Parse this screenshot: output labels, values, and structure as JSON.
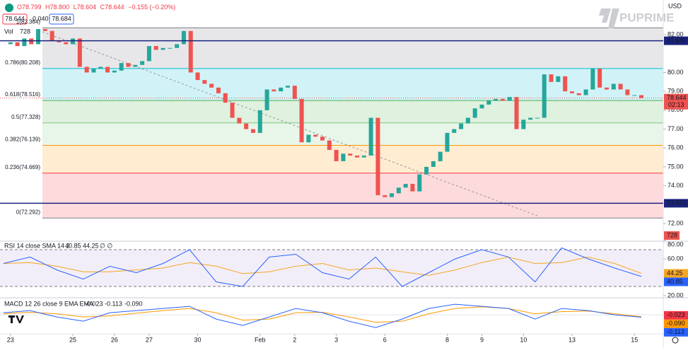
{
  "header": {
    "ohlc": [
      "O78.799",
      "H78.800",
      "L78.604",
      "C78.644",
      "−0.155 (−0.20%)"
    ],
    "spread": "0.040",
    "ask": "78.684",
    "vol_label": "Vol",
    "vol": "728",
    "currency": "USD",
    "timer": "02:13",
    "brand": "PUPRIME"
  },
  "chart_data": {
    "type": "candlestick",
    "categories": [
      null,
      "23",
      null,
      null,
      null,
      null,
      null,
      null,
      null,
      null,
      "25",
      null,
      null,
      null,
      null,
      null,
      "26",
      null,
      null,
      null,
      null,
      "27",
      null,
      null,
      null,
      null,
      null,
      null,
      "30",
      null,
      null,
      null,
      null,
      null,
      null,
      null,
      null,
      "Feb",
      null,
      null,
      null,
      null,
      "2",
      null,
      null,
      null,
      null,
      null,
      "3",
      null,
      null,
      null,
      null,
      null,
      null,
      "6",
      null,
      null,
      null,
      null,
      null,
      null,
      null,
      null,
      "8",
      null,
      null,
      null,
      null,
      "9",
      null,
      null,
      null,
      null,
      null,
      "10",
      null,
      null,
      null,
      null,
      null,
      null,
      "13",
      null,
      null,
      null,
      null,
      null,
      null,
      null,
      null,
      "15",
      null
    ],
    "values": [
      81.5,
      81.6,
      81.4,
      81.8,
      81.5,
      82.3,
      82.2,
      81.7,
      81.6,
      81.5,
      81.8,
      80.3,
      80.0,
      80.2,
      80.3,
      80.0,
      80.1,
      80.5,
      80.3,
      80.4,
      80.6,
      81.4,
      81.2,
      81.3,
      81.3,
      81.5,
      82.2,
      80.0,
      79.6,
      79.4,
      79.2,
      78.9,
      78.4,
      77.6,
      77.3,
      77.0,
      76.8,
      78.0,
      79.1,
      79.0,
      79.2,
      79.3,
      78.6,
      76.3,
      76.7,
      76.6,
      76.4,
      75.9,
      75.3,
      75.7,
      75.6,
      75.5,
      75.6,
      77.6,
      73.5,
      73.4,
      73.6,
      73.9,
      74.1,
      73.7,
      74.6,
      75.0,
      75.3,
      75.8,
      76.8,
      77.0,
      77.3,
      77.6,
      78.1,
      78.3,
      78.5,
      78.6,
      78.5,
      78.7,
      77.0,
      77.5,
      77.6,
      77.6,
      79.9,
      79.5,
      79.8,
      79.0,
      78.9,
      78.8,
      79.1,
      80.2,
      79.2,
      79.1,
      79.4,
      79.1,
      78.8,
      78.8,
      78.644
    ],
    "up_color": "#26a69a",
    "down_color": "#ef5350",
    "ylim": [
      71.1,
      83.84
    ],
    "yticks": [
      {
        "value": 72,
        "label": "72.00"
      },
      {
        "value": 74,
        "label": "74.00"
      },
      {
        "value": 75,
        "label": "75.00"
      },
      {
        "value": 76,
        "label": "76.00"
      },
      {
        "value": 77,
        "label": "77.00"
      },
      {
        "value": 78,
        "label": "78.00"
      },
      {
        "value": 79,
        "label": "79.00"
      },
      {
        "value": 80,
        "label": "80.00"
      },
      {
        "value": 82,
        "label": "82.00"
      }
    ],
    "fib": [
      {
        "label": "1(82.364)",
        "value": 82.364,
        "color": "#787b86"
      },
      {
        "label": "0.786(80.208)",
        "value": 80.208,
        "color": "#00bcd4"
      },
      {
        "label": "0.618(78.516)",
        "value": 78.516,
        "color": "#4caf50"
      },
      {
        "label": "0.5(77.328)",
        "value": 77.328,
        "color": "#81c784"
      },
      {
        "label": "0.382(76.139)",
        "value": 76.139,
        "color": "#ff9800"
      },
      {
        "label": "0.236(74.669)",
        "value": 74.669,
        "color": "#f23645"
      },
      {
        "label": "0(72.292)",
        "value": 72.292,
        "color": "#787b86"
      }
    ],
    "hlines": [
      {
        "value": 81.68,
        "label": "81.680",
        "color": "#1a237e"
      },
      {
        "value": 73.072,
        "label": "73.072",
        "color": "#1a237e"
      }
    ],
    "rsi": {
      "title": "RSI 14 close SMA 14 2",
      "nulls": "∅ ∅",
      "ylim": [
        18.46,
        80
      ],
      "yticks": [
        {
          "value": 80,
          "label": "80.00"
        },
        {
          "value": 60,
          "label": "60.00"
        },
        {
          "value": 20,
          "label": "20.00"
        }
      ],
      "band": [
        70,
        30
      ],
      "values": [
        55,
        62,
        48,
        38,
        52,
        45,
        55,
        70,
        35,
        30,
        62,
        65,
        45,
        38,
        62,
        30,
        45,
        60,
        70,
        62,
        35,
        72,
        60,
        50,
        40.85
      ],
      "sma": [
        55,
        56,
        52,
        46,
        46,
        48,
        50,
        56,
        52,
        44,
        46,
        52,
        55,
        48,
        50,
        46,
        42,
        48,
        56,
        62,
        55,
        56,
        62,
        55,
        44.25
      ],
      "color": "#2962ff",
      "sma_color": "#f5a623"
    },
    "macd": {
      "title": "MACD 12 26 close 9 EMA EMA",
      "ylim": [
        -0.83,
        0.67
      ],
      "histogram_last": -0.023,
      "values": [
        0.1,
        0.2,
        -0.1,
        -0.3,
        0.1,
        0.2,
        0.3,
        0.4,
        -0.2,
        -0.5,
        -0.1,
        0.3,
        0.1,
        -0.3,
        -0.6,
        -0.2,
        0.3,
        0.5,
        0.4,
        0.3,
        -0.2,
        0.3,
        0.2,
        0.0,
        -0.113
      ],
      "signal": [
        0.05,
        0.12,
        0.05,
        -0.1,
        -0.05,
        0.08,
        0.2,
        0.3,
        0.1,
        -0.25,
        -0.2,
        0.1,
        0.12,
        -0.1,
        -0.35,
        -0.3,
        0.05,
        0.3,
        0.38,
        0.3,
        0.05,
        0.15,
        0.18,
        0.05,
        -0.09
      ],
      "signal_label": "-0.090",
      "color": "#2962ff",
      "signal_color": "#ff9800"
    }
  }
}
